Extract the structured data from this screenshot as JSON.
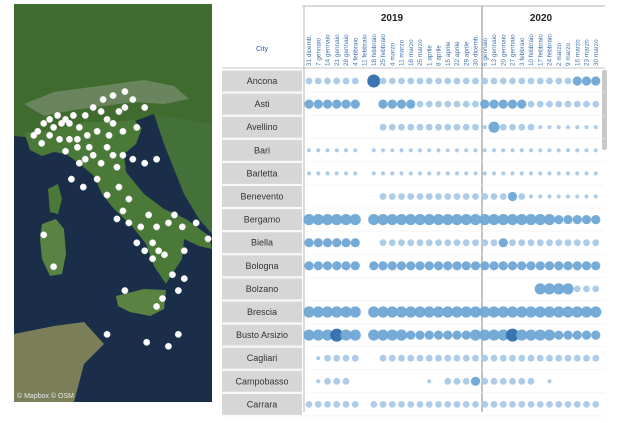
{
  "map": {
    "attribution": "© Mapbox © OSM",
    "points": [
      [
        0.12,
        0.32
      ],
      [
        0.15,
        0.3
      ],
      [
        0.18,
        0.29
      ],
      [
        0.2,
        0.31
      ],
      [
        0.22,
        0.28
      ],
      [
        0.24,
        0.3
      ],
      [
        0.26,
        0.29
      ],
      [
        0.28,
        0.3
      ],
      [
        0.3,
        0.28
      ],
      [
        0.33,
        0.31
      ],
      [
        0.36,
        0.28
      ],
      [
        0.4,
        0.26
      ],
      [
        0.44,
        0.27
      ],
      [
        0.47,
        0.29
      ],
      [
        0.5,
        0.3
      ],
      [
        0.53,
        0.27
      ],
      [
        0.56,
        0.26
      ],
      [
        0.45,
        0.24
      ],
      [
        0.5,
        0.23
      ],
      [
        0.56,
        0.22
      ],
      [
        0.6,
        0.24
      ],
      [
        0.66,
        0.26
      ],
      [
        0.62,
        0.31
      ],
      [
        0.55,
        0.32
      ],
      [
        0.48,
        0.33
      ],
      [
        0.42,
        0.32
      ],
      [
        0.37,
        0.33
      ],
      [
        0.32,
        0.34
      ],
      [
        0.28,
        0.34
      ],
      [
        0.23,
        0.34
      ],
      [
        0.18,
        0.33
      ],
      [
        0.14,
        0.35
      ],
      [
        0.1,
        0.33
      ],
      [
        0.26,
        0.37
      ],
      [
        0.32,
        0.36
      ],
      [
        0.38,
        0.36
      ],
      [
        0.4,
        0.38
      ],
      [
        0.36,
        0.39
      ],
      [
        0.33,
        0.4
      ],
      [
        0.47,
        0.36
      ],
      [
        0.5,
        0.38
      ],
      [
        0.44,
        0.4
      ],
      [
        0.52,
        0.41
      ],
      [
        0.55,
        0.38
      ],
      [
        0.6,
        0.39
      ],
      [
        0.66,
        0.4
      ],
      [
        0.72,
        0.39
      ],
      [
        0.29,
        0.44
      ],
      [
        0.35,
        0.46
      ],
      [
        0.42,
        0.44
      ],
      [
        0.47,
        0.48
      ],
      [
        0.53,
        0.46
      ],
      [
        0.58,
        0.49
      ],
      [
        0.55,
        0.52
      ],
      [
        0.58,
        0.55
      ],
      [
        0.52,
        0.54
      ],
      [
        0.64,
        0.56
      ],
      [
        0.68,
        0.53
      ],
      [
        0.72,
        0.56
      ],
      [
        0.7,
        0.6
      ],
      [
        0.62,
        0.6
      ],
      [
        0.66,
        0.62
      ],
      [
        0.7,
        0.64
      ],
      [
        0.73,
        0.62
      ],
      [
        0.78,
        0.55
      ],
      [
        0.81,
        0.53
      ],
      [
        0.85,
        0.56
      ],
      [
        0.92,
        0.55
      ],
      [
        0.98,
        0.59
      ],
      [
        0.76,
        0.63
      ],
      [
        0.8,
        0.68
      ],
      [
        0.86,
        0.62
      ],
      [
        0.86,
        0.69
      ],
      [
        0.83,
        0.72
      ],
      [
        0.56,
        0.72
      ],
      [
        0.72,
        0.76
      ],
      [
        0.75,
        0.74
      ],
      [
        0.15,
        0.58
      ],
      [
        0.2,
        0.66
      ],
      [
        0.67,
        0.85
      ],
      [
        0.78,
        0.86
      ],
      [
        0.83,
        0.83
      ],
      [
        0.47,
        0.83
      ]
    ]
  },
  "chart_data": {
    "type": "scatter",
    "x_axis_header": "City",
    "years": [
      "2019",
      "2020"
    ],
    "dates": [
      "31 dicemb.",
      "7 gennaio",
      "14 gennaio",
      "21 gennaio",
      "28 gennaio",
      "4 febbraio",
      "11 febbraio",
      "18 febbraio",
      "25 febbraio",
      "4 marzo",
      "11 marzo",
      "18 marzo",
      "25 marzo",
      "1 aprile",
      "8 aprile",
      "15 aprile",
      "22 aprile",
      "29 aprile",
      "30 dicemb.",
      "6 gennaio",
      "13 gennaio",
      "20 gennaio",
      "27 gennaio",
      "3 febbraio",
      "10 febbraio",
      "17 febbraio",
      "24 febbraio",
      "2 marzo",
      "9 marzo",
      "16 marzo",
      "23 marzo",
      "30 marzo"
    ],
    "date_year": [
      0,
      0,
      0,
      0,
      0,
      0,
      0,
      0,
      0,
      0,
      0,
      0,
      0,
      0,
      0,
      0,
      0,
      0,
      1,
      1,
      1,
      1,
      1,
      1,
      1,
      1,
      1,
      1,
      1,
      1,
      1,
      1
    ],
    "colors": {
      "dot_light": "#a9c9e8",
      "dot_mid": "#6fa6d6",
      "dot_dark": "#2f6eae",
      "row_bg": "#d6d6d6",
      "separator": "#b5b5b5"
    },
    "cities": [
      {
        "name": "Ancona",
        "values": [
          2,
          2,
          2,
          2,
          2,
          2,
          0,
          5,
          2,
          2,
          2,
          2,
          2,
          2,
          2,
          2,
          2,
          2,
          2,
          2,
          2,
          2,
          2,
          2,
          2,
          2,
          2,
          2,
          2,
          3,
          3,
          3
        ]
      },
      {
        "name": "Asti",
        "values": [
          3,
          3,
          3,
          3,
          3,
          3,
          0,
          0,
          3,
          3,
          3,
          3,
          2,
          2,
          2,
          2,
          2,
          2,
          2,
          3,
          3,
          3,
          3,
          3,
          2,
          2,
          2,
          2,
          2,
          2,
          2,
          2
        ]
      },
      {
        "name": "Avellino",
        "values": [
          0,
          0,
          0,
          0,
          0,
          0,
          0,
          0,
          2,
          2,
          2,
          2,
          2,
          2,
          2,
          2,
          2,
          2,
          2,
          1,
          4,
          2,
          2,
          2,
          2,
          1,
          1,
          1,
          1,
          1,
          1,
          1
        ]
      },
      {
        "name": "Bari",
        "values": [
          1,
          1,
          1,
          1,
          1,
          1,
          0,
          1,
          1,
          1,
          1,
          1,
          1,
          1,
          1,
          1,
          1,
          1,
          1,
          1,
          1,
          1,
          1,
          1,
          1,
          1,
          1,
          1,
          1,
          1,
          1,
          1
        ]
      },
      {
        "name": "Barletta",
        "values": [
          1,
          1,
          1,
          1,
          1,
          1,
          0,
          1,
          1,
          1,
          1,
          1,
          1,
          1,
          1,
          1,
          1,
          1,
          1,
          1,
          1,
          1,
          1,
          1,
          1,
          1,
          1,
          1,
          1,
          1,
          1,
          1
        ]
      },
      {
        "name": "Benevento",
        "values": [
          0,
          0,
          0,
          0,
          0,
          0,
          0,
          0,
          2,
          2,
          2,
          2,
          2,
          2,
          2,
          2,
          2,
          2,
          2,
          2,
          2,
          2,
          3,
          2,
          1,
          1,
          1,
          1,
          1,
          1,
          1,
          1
        ]
      },
      {
        "name": "Bergamo",
        "values": [
          4,
          4,
          4,
          4,
          4,
          4,
          0,
          4,
          4,
          4,
          4,
          4,
          4,
          4,
          4,
          4,
          4,
          4,
          4,
          4,
          4,
          4,
          4,
          4,
          4,
          4,
          4,
          3,
          3,
          3,
          3,
          3
        ]
      },
      {
        "name": "Biella",
        "values": [
          3,
          3,
          3,
          3,
          3,
          3,
          0,
          0,
          2,
          2,
          2,
          2,
          2,
          2,
          2,
          2,
          2,
          2,
          2,
          2,
          2,
          3,
          2,
          2,
          2,
          2,
          2,
          2,
          2,
          2,
          2,
          2
        ]
      },
      {
        "name": "Bologna",
        "values": [
          3,
          3,
          3,
          3,
          3,
          3,
          0,
          3,
          3,
          3,
          3,
          3,
          3,
          3,
          3,
          3,
          3,
          3,
          3,
          3,
          3,
          3,
          3,
          3,
          3,
          3,
          3,
          3,
          3,
          3,
          3,
          3
        ]
      },
      {
        "name": "Bolzano",
        "values": [
          0,
          0,
          0,
          0,
          0,
          0,
          0,
          0,
          0,
          0,
          0,
          0,
          0,
          0,
          0,
          0,
          0,
          0,
          0,
          0,
          0,
          0,
          0,
          0,
          0,
          4,
          4,
          4,
          4,
          2,
          2,
          2
        ]
      },
      {
        "name": "Brescia",
        "values": [
          4,
          4,
          4,
          4,
          4,
          4,
          0,
          4,
          4,
          4,
          4,
          4,
          4,
          4,
          4,
          4,
          4,
          4,
          4,
          4,
          4,
          4,
          4,
          4,
          4,
          4,
          4,
          4,
          4,
          4,
          4,
          4
        ]
      },
      {
        "name": "Busto Arsizio",
        "values": [
          4,
          4,
          4,
          5,
          4,
          4,
          0,
          4,
          4,
          4,
          4,
          3,
          3,
          3,
          3,
          3,
          3,
          3,
          4,
          4,
          4,
          4,
          5,
          4,
          4,
          4,
          4,
          3,
          3,
          3,
          3,
          3
        ]
      },
      {
        "name": "Cagliari",
        "values": [
          0,
          1,
          2,
          2,
          2,
          2,
          0,
          0,
          2,
          2,
          2,
          2,
          2,
          2,
          2,
          2,
          2,
          2,
          2,
          2,
          2,
          2,
          2,
          2,
          2,
          2,
          2,
          2,
          2,
          2,
          2,
          2
        ]
      },
      {
        "name": "Campobasso",
        "values": [
          0,
          1,
          2,
          2,
          2,
          0,
          0,
          0,
          0,
          0,
          0,
          0,
          0,
          1,
          0,
          2,
          2,
          2,
          3,
          2,
          2,
          2,
          2,
          2,
          2,
          0,
          1,
          0,
          0,
          0,
          0,
          0
        ]
      },
      {
        "name": "Carrara",
        "values": [
          2,
          2,
          2,
          2,
          2,
          2,
          0,
          2,
          2,
          2,
          2,
          2,
          2,
          2,
          2,
          2,
          2,
          2,
          2,
          2,
          2,
          2,
          2,
          2,
          2,
          2,
          2,
          2,
          2,
          2,
          2,
          2
        ]
      }
    ]
  }
}
